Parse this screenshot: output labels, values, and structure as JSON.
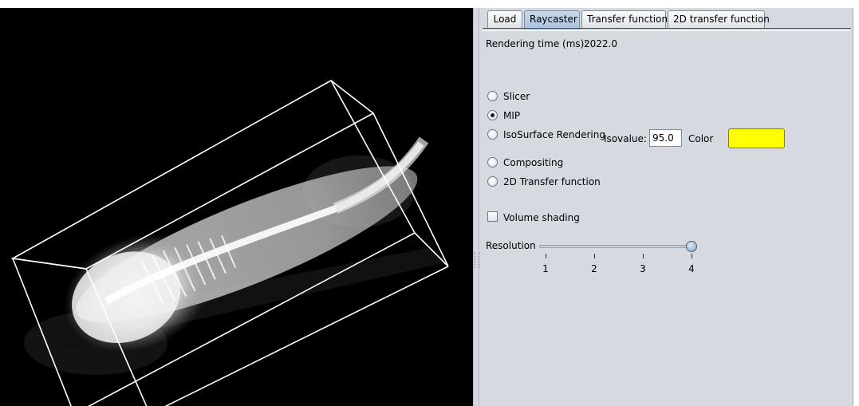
{
  "tabs": [
    {
      "label": "Load",
      "active": false
    },
    {
      "label": "Raycaster",
      "active": true
    },
    {
      "label": "Transfer function",
      "active": false
    },
    {
      "label": "2D transfer function",
      "active": false
    }
  ],
  "rendering_time": {
    "label": "Rendering time (ms):",
    "value": "2022.0"
  },
  "render_modes": [
    {
      "label": "Slicer",
      "selected": false
    },
    {
      "label": "MIP",
      "selected": true
    },
    {
      "label": "IsoSurface Rendering",
      "selected": false
    },
    {
      "label": "Compositing",
      "selected": false
    },
    {
      "label": "2D Transfer function",
      "selected": false
    }
  ],
  "iso": {
    "isovalue_label": "Isovalue:",
    "isovalue": "95.0",
    "color_label": "Color",
    "color": "#ffff00"
  },
  "volume_shading": {
    "label": "Volume shading",
    "checked": false
  },
  "resolution": {
    "label": "Resolution",
    "value": 4,
    "min": 1,
    "max": 4,
    "ticks": [
      "1",
      "2",
      "3",
      "4"
    ]
  },
  "colors": {
    "panel_bg": "#d6d9df",
    "viewport_bg": "#000000",
    "active_tab": "#b5cbe0"
  }
}
